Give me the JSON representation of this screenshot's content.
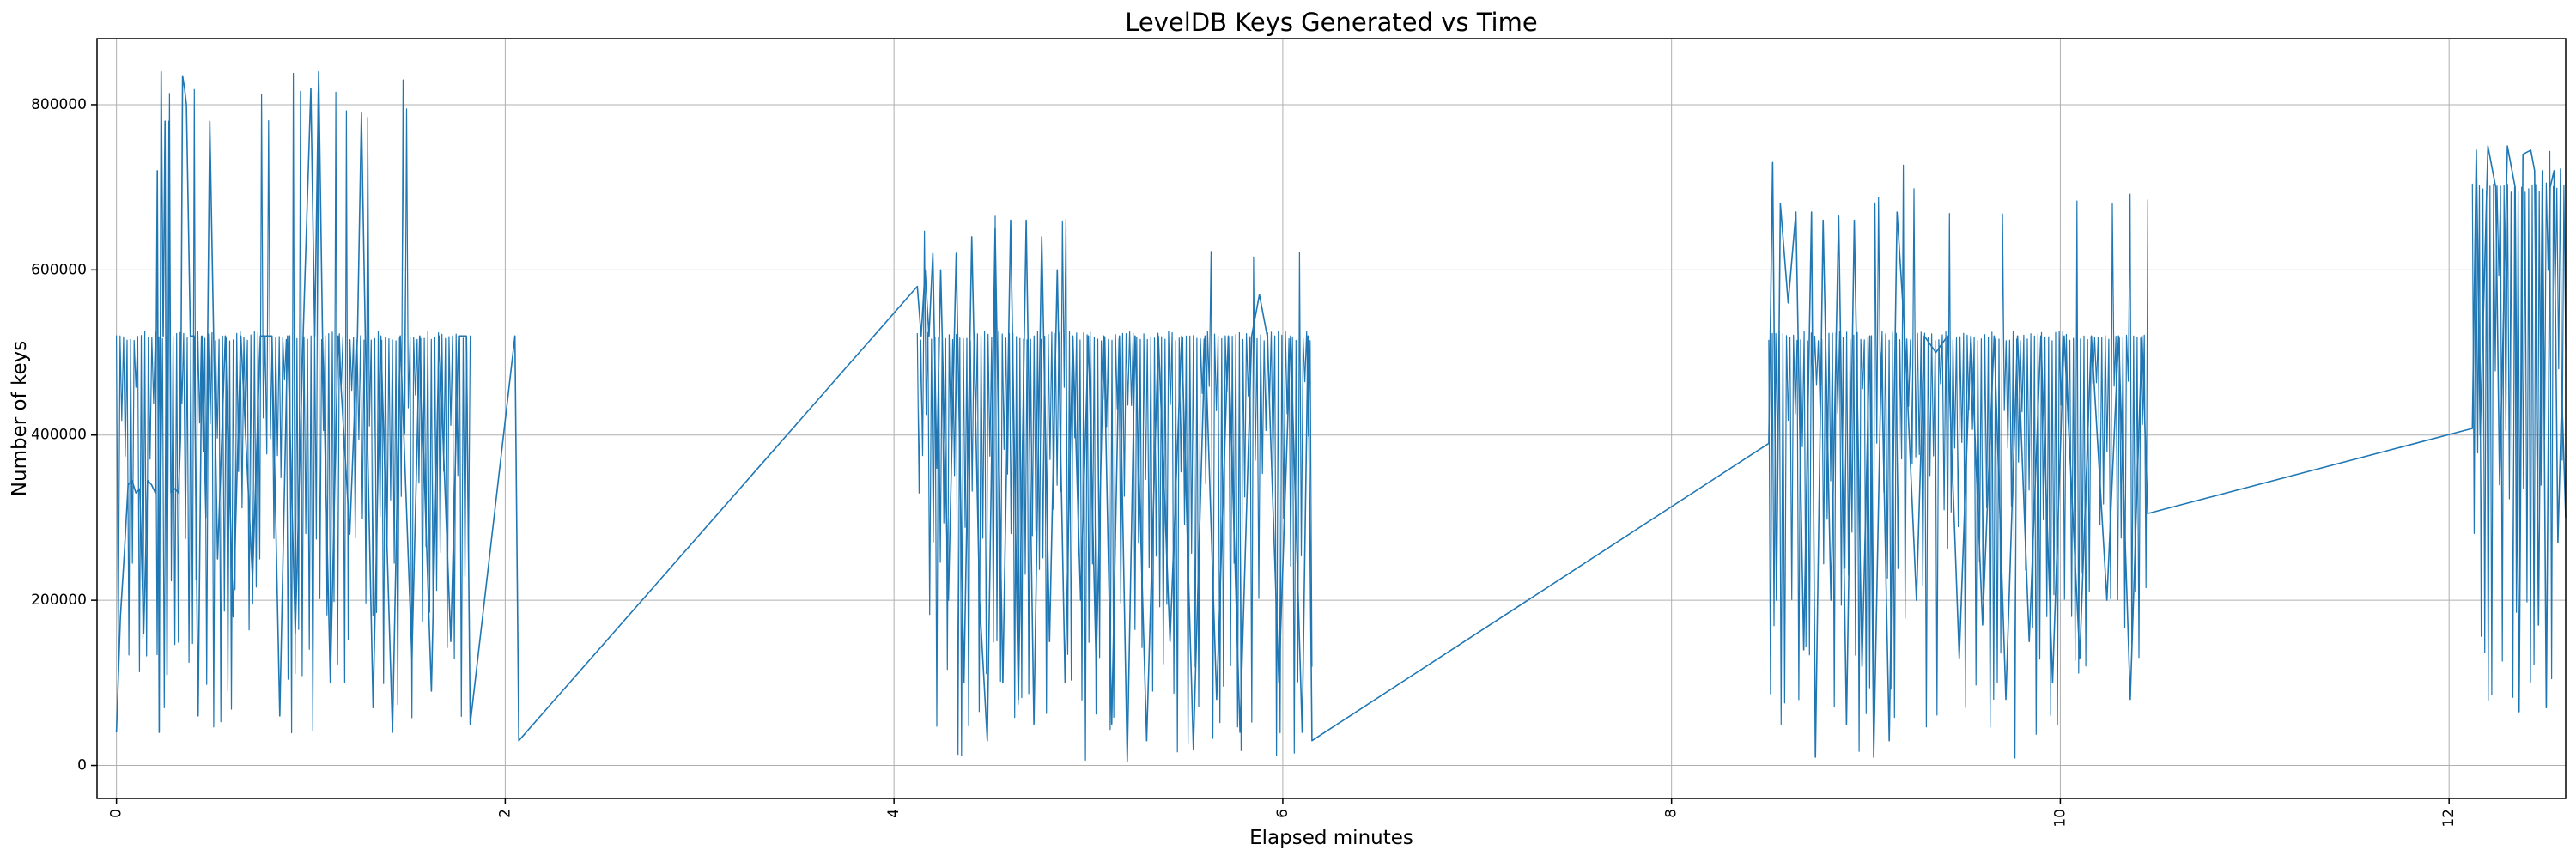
{
  "chart_data": {
    "type": "line",
    "title": "LevelDB Keys Generated vs Time",
    "xlabel": "Elapsed minutes",
    "ylabel": "Number of keys",
    "xlim": [
      -0.1,
      12.6
    ],
    "ylim": [
      -40000,
      880000
    ],
    "grid": true,
    "x_ticks": [
      0,
      2,
      4,
      6,
      8,
      10,
      12
    ],
    "y_ticks": [
      0,
      200000,
      400000,
      600000,
      800000
    ],
    "y_tick_labels": [
      "0",
      "200000",
      "400000",
      "600000",
      "800000"
    ],
    "series_color": "#1f77b4",
    "segments": [
      {
        "x_start": 0.0,
        "x_end": 1.82,
        "baseline": 520000,
        "low": 30000,
        "high": 840000
      },
      {
        "x_start": 4.12,
        "x_end": 6.15,
        "baseline": 520000,
        "low": 5000,
        "high": 665000
      },
      {
        "x_start": 8.5,
        "x_end": 10.45,
        "baseline": 520000,
        "low": 8000,
        "high": 727000
      },
      {
        "x_start": 12.12,
        "x_end": 12.6,
        "baseline": 700000,
        "low": 65000,
        "high": 755000
      }
    ],
    "points": [
      [
        0.0,
        40000
      ],
      [
        0.02,
        180000
      ],
      [
        0.04,
        255000
      ],
      [
        0.06,
        340000
      ],
      [
        0.08,
        345000
      ],
      [
        0.1,
        330000
      ],
      [
        0.12,
        335000
      ],
      [
        0.14,
        160000
      ],
      [
        0.16,
        345000
      ],
      [
        0.18,
        340000
      ],
      [
        0.2,
        330000
      ],
      [
        0.21,
        720000
      ],
      [
        0.22,
        40000
      ],
      [
        0.23,
        840000
      ],
      [
        0.24,
        520000
      ],
      [
        0.25,
        780000
      ],
      [
        0.26,
        110000
      ],
      [
        0.27,
        780000
      ],
      [
        0.28,
        330000
      ],
      [
        0.3,
        335000
      ],
      [
        0.32,
        330000
      ],
      [
        0.33,
        400000
      ],
      [
        0.34,
        835000
      ],
      [
        0.35,
        820000
      ],
      [
        0.36,
        800000
      ],
      [
        0.38,
        520000
      ],
      [
        0.4,
        520000
      ],
      [
        0.42,
        60000
      ],
      [
        0.44,
        520000
      ],
      [
        0.46,
        300000
      ],
      [
        0.48,
        780000
      ],
      [
        0.5,
        520000
      ],
      [
        0.52,
        250000
      ],
      [
        0.56,
        520000
      ],
      [
        0.6,
        180000
      ],
      [
        0.64,
        520000
      ],
      [
        0.7,
        225000
      ],
      [
        0.74,
        520000
      ],
      [
        0.8,
        520000
      ],
      [
        0.84,
        60000
      ],
      [
        0.88,
        520000
      ],
      [
        0.92,
        160000
      ],
      [
        0.96,
        520000
      ],
      [
        1.0,
        820000
      ],
      [
        1.02,
        520000
      ],
      [
        1.04,
        840000
      ],
      [
        1.06,
        520000
      ],
      [
        1.1,
        100000
      ],
      [
        1.14,
        520000
      ],
      [
        1.2,
        280000
      ],
      [
        1.24,
        520000
      ],
      [
        1.26,
        790000
      ],
      [
        1.28,
        520000
      ],
      [
        1.32,
        70000
      ],
      [
        1.36,
        520000
      ],
      [
        1.42,
        40000
      ],
      [
        1.46,
        520000
      ],
      [
        1.52,
        130000
      ],
      [
        1.56,
        520000
      ],
      [
        1.62,
        90000
      ],
      [
        1.66,
        520000
      ],
      [
        1.72,
        150000
      ],
      [
        1.76,
        520000
      ],
      [
        1.8,
        520000
      ],
      [
        1.82,
        50000
      ],
      [
        2.05,
        520000
      ],
      [
        2.07,
        30000
      ],
      [
        4.12,
        580000
      ],
      [
        4.14,
        520000
      ],
      [
        4.16,
        600000
      ],
      [
        4.18,
        520000
      ],
      [
        4.2,
        620000
      ],
      [
        4.22,
        360000
      ],
      [
        4.24,
        600000
      ],
      [
        4.28,
        200000
      ],
      [
        4.32,
        620000
      ],
      [
        4.36,
        100000
      ],
      [
        4.4,
        640000
      ],
      [
        4.44,
        200000
      ],
      [
        4.48,
        30000
      ],
      [
        4.52,
        650000
      ],
      [
        4.56,
        100000
      ],
      [
        4.6,
        660000
      ],
      [
        4.64,
        80000
      ],
      [
        4.68,
        660000
      ],
      [
        4.72,
        50000
      ],
      [
        4.76,
        640000
      ],
      [
        4.8,
        150000
      ],
      [
        4.84,
        600000
      ],
      [
        4.88,
        100000
      ],
      [
        4.92,
        520000
      ],
      [
        4.96,
        200000
      ],
      [
        5.0,
        520000
      ],
      [
        5.04,
        120000
      ],
      [
        5.08,
        520000
      ],
      [
        5.12,
        50000
      ],
      [
        5.16,
        520000
      ],
      [
        5.2,
        5000
      ],
      [
        5.24,
        520000
      ],
      [
        5.3,
        30000
      ],
      [
        5.36,
        520000
      ],
      [
        5.42,
        150000
      ],
      [
        5.48,
        520000
      ],
      [
        5.54,
        20000
      ],
      [
        5.6,
        520000
      ],
      [
        5.66,
        80000
      ],
      [
        5.72,
        520000
      ],
      [
        5.78,
        40000
      ],
      [
        5.84,
        520000
      ],
      [
        5.88,
        570000
      ],
      [
        5.92,
        520000
      ],
      [
        5.98,
        100000
      ],
      [
        6.04,
        520000
      ],
      [
        6.1,
        40000
      ],
      [
        6.13,
        520000
      ],
      [
        6.15,
        30000
      ],
      [
        8.5,
        390000
      ],
      [
        8.52,
        730000
      ],
      [
        8.54,
        200000
      ],
      [
        8.56,
        680000
      ],
      [
        8.6,
        560000
      ],
      [
        8.64,
        670000
      ],
      [
        8.68,
        140000
      ],
      [
        8.72,
        670000
      ],
      [
        8.74,
        10000
      ],
      [
        8.78,
        660000
      ],
      [
        8.82,
        200000
      ],
      [
        8.86,
        665000
      ],
      [
        8.9,
        50000
      ],
      [
        8.94,
        660000
      ],
      [
        8.98,
        120000
      ],
      [
        9.02,
        520000
      ],
      [
        9.04,
        10000
      ],
      [
        9.08,
        500000
      ],
      [
        9.12,
        30000
      ],
      [
        9.16,
        670000
      ],
      [
        9.2,
        520000
      ],
      [
        9.26,
        200000
      ],
      [
        9.3,
        520000
      ],
      [
        9.36,
        500000
      ],
      [
        9.42,
        520000
      ],
      [
        9.48,
        130000
      ],
      [
        9.54,
        520000
      ],
      [
        9.6,
        170000
      ],
      [
        9.66,
        520000
      ],
      [
        9.72,
        80000
      ],
      [
        9.78,
        520000
      ],
      [
        9.84,
        150000
      ],
      [
        9.9,
        520000
      ],
      [
        9.96,
        100000
      ],
      [
        10.02,
        520000
      ],
      [
        10.1,
        130000
      ],
      [
        10.16,
        520000
      ],
      [
        10.24,
        200000
      ],
      [
        10.3,
        520000
      ],
      [
        10.36,
        80000
      ],
      [
        10.42,
        520000
      ],
      [
        10.45,
        305000
      ],
      [
        12.12,
        408000
      ],
      [
        12.14,
        745000
      ],
      [
        12.16,
        400000
      ],
      [
        12.2,
        750000
      ],
      [
        12.24,
        700000
      ],
      [
        12.26,
        340000
      ],
      [
        12.3,
        750000
      ],
      [
        12.34,
        700000
      ],
      [
        12.36,
        65000
      ],
      [
        12.38,
        740000
      ],
      [
        12.42,
        745000
      ],
      [
        12.44,
        720000
      ],
      [
        12.46,
        170000
      ],
      [
        12.48,
        720000
      ],
      [
        12.5,
        70000
      ],
      [
        12.52,
        700000
      ],
      [
        12.54,
        720000
      ],
      [
        12.56,
        270000
      ],
      [
        12.58,
        450000
      ],
      [
        12.6,
        300000
      ]
    ]
  }
}
